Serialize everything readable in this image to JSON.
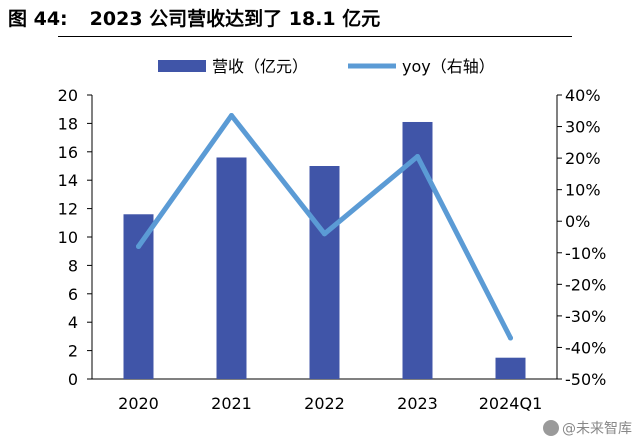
{
  "header": {
    "figure_label": "图 44:",
    "title": "2023 公司营收达到了 18.1 亿元"
  },
  "watermark": {
    "text": "@未来智库"
  },
  "chart_data": {
    "type": "bar",
    "categories": [
      "2020",
      "2021",
      "2022",
      "2023",
      "2024Q1"
    ],
    "series": [
      {
        "name": "营收（亿元）",
        "type": "bar",
        "axis": "left",
        "color": "#4055a8",
        "values": [
          11.6,
          15.6,
          15.0,
          18.1,
          1.5
        ]
      },
      {
        "name": "yoy（右轴）",
        "type": "line",
        "axis": "right",
        "color": "#5b9bd5",
        "values": [
          -8,
          33.5,
          -4,
          20.5,
          -37
        ]
      }
    ],
    "ylim": [
      0,
      20
    ],
    "yticks": [
      "0",
      "2",
      "4",
      "6",
      "8",
      "10",
      "12",
      "14",
      "16",
      "18",
      "20"
    ],
    "y2lim": [
      -50,
      40
    ],
    "y2ticks": [
      "-50%",
      "-40%",
      "-30%",
      "-20%",
      "-10%",
      "0%",
      "10%",
      "20%",
      "30%",
      "40%"
    ],
    "legend_position": "top-center",
    "grid": false
  }
}
